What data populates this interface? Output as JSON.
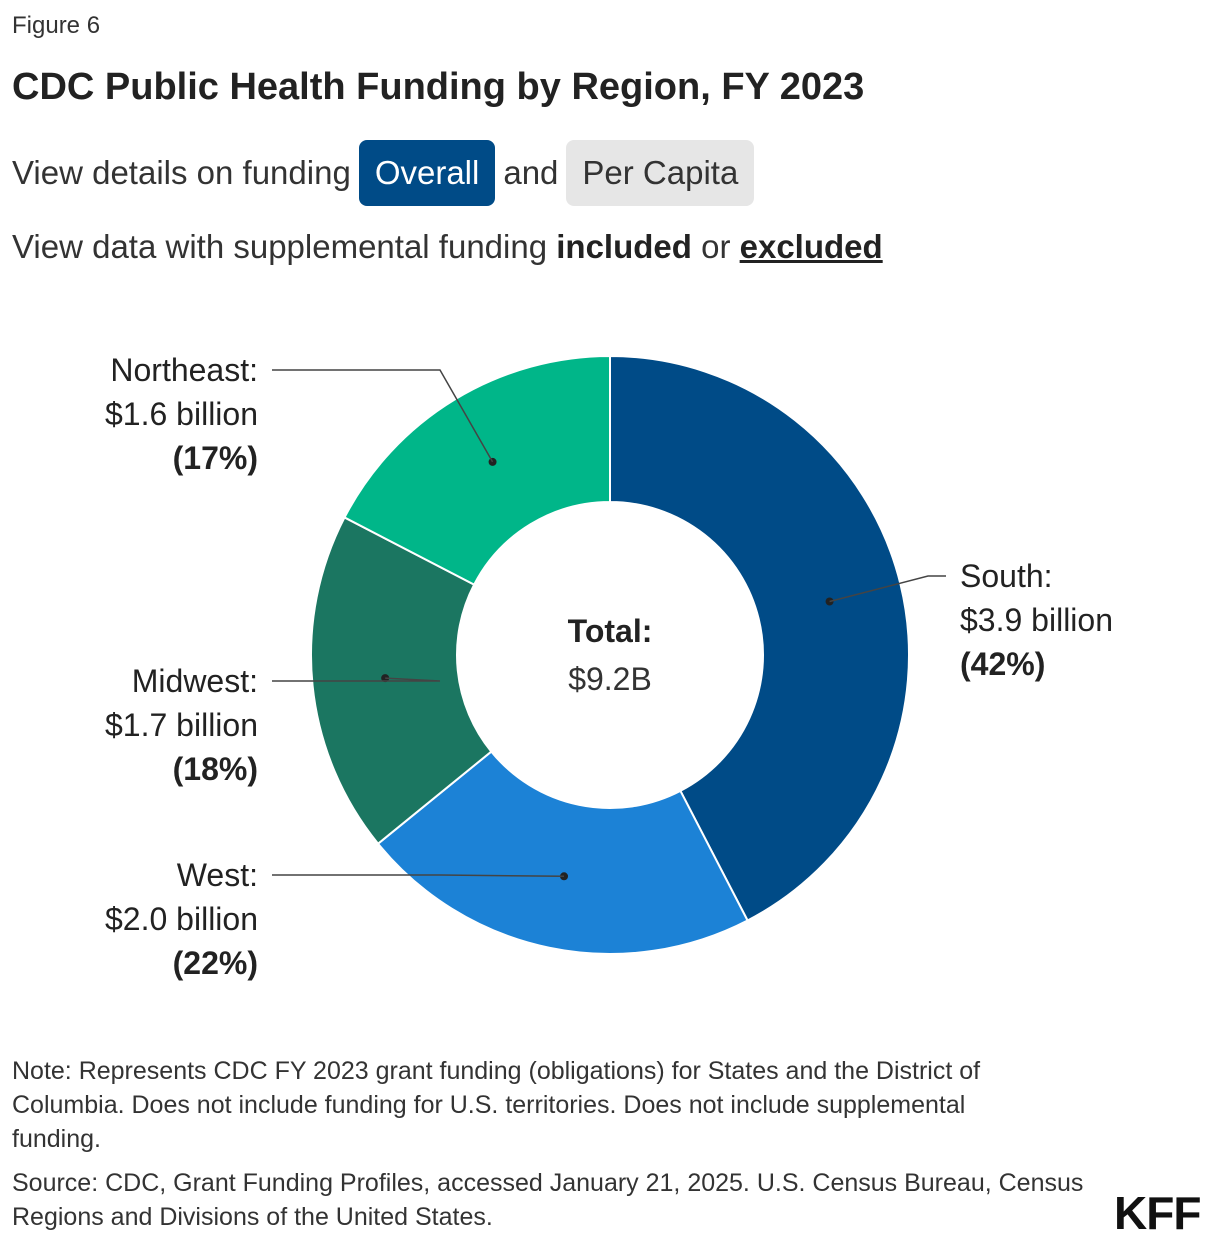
{
  "figure_label": "Figure 6",
  "title": "CDC Public Health Funding by Region, FY 2023",
  "controls": {
    "funding_prefix": "View details on funding",
    "overall_label": "Overall",
    "and_label": "and",
    "per_capita_label": "Per Capita",
    "supplemental_prefix": "View data with supplemental funding",
    "included_label": "included",
    "or_label": "or",
    "excluded_label": "excluded"
  },
  "chart_data": {
    "type": "pie",
    "variant": "donut",
    "title": "CDC Public Health Funding by Region, FY 2023",
    "center_label": "Total:",
    "center_value": "$9.2B",
    "slices": [
      {
        "name": "South",
        "label": "South:",
        "value_text": "$3.9 billion",
        "pct_text": "(42%)",
        "value": 3.9,
        "share": 0.42,
        "color": "#004B87"
      },
      {
        "name": "West",
        "label": "West:",
        "value_text": "$2.0 billion",
        "pct_text": "(22%)",
        "value": 2.0,
        "share": 0.22,
        "color": "#1C82D6"
      },
      {
        "name": "Midwest",
        "label": "Midwest:",
        "value_text": "$1.7 billion",
        "pct_text": "(18%)",
        "value": 1.7,
        "share": 0.18,
        "color": "#1B7661"
      },
      {
        "name": "Northeast",
        "label": "Northeast:",
        "value_text": "$1.6 billion",
        "pct_text": "(17%)",
        "value": 1.6,
        "share": 0.17,
        "color": "#00B689"
      }
    ]
  },
  "note": "Note: Represents CDC FY 2023 grant funding (obligations) for States and the District of Columbia. Does not include funding for U.S. territories. Does not include supplemental funding.",
  "source": "Source: CDC, Grant Funding Profiles, accessed January 21, 2025. U.S. Census Bureau, Census Regions and Divisions of the United States.",
  "logo": "KFF"
}
